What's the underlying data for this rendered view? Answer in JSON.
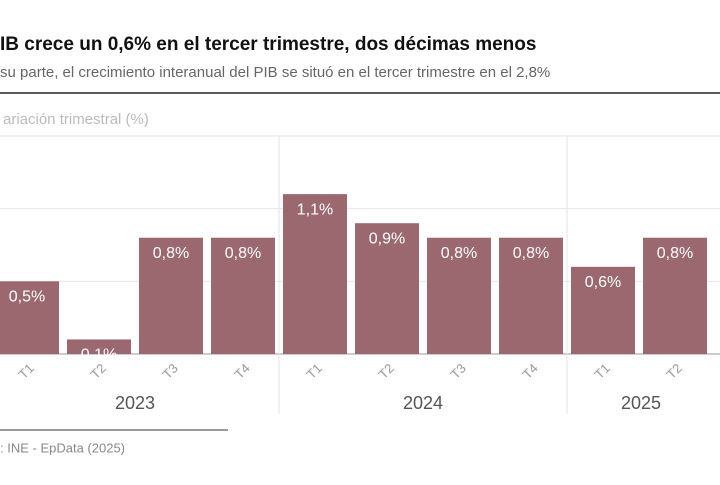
{
  "chart_data": {
    "type": "bar",
    "title": "IB crece un 0,6% en el tercer trimestre, dos décimas menos",
    "subtitle": "su parte, el crecimiento interanual del PIB se situó en el tercer trimestre en el 2,8%",
    "y_label": "ariación trimestral (%)",
    "source": ": INE - EpData (2025)",
    "categories": [
      "T1",
      "T2",
      "T3",
      "T4",
      "T1",
      "T2",
      "T3",
      "T4",
      "T1",
      "T2"
    ],
    "groups": [
      "2023",
      "2024",
      "2025"
    ],
    "values": [
      0.5,
      0.1,
      0.8,
      0.8,
      1.1,
      0.9,
      0.8,
      0.8,
      0.6,
      0.8
    ],
    "value_labels": [
      "0,5%",
      "0,1%",
      "0,8%",
      "0,8%",
      "1,1%",
      "0,9%",
      "0,8%",
      "0,8%",
      "0,6%",
      "0,8%"
    ],
    "color": "#9c6870",
    "ylim": [
      0,
      1.5
    ],
    "yticks": [
      0,
      0.5,
      1,
      1.5
    ],
    "grid": true
  }
}
